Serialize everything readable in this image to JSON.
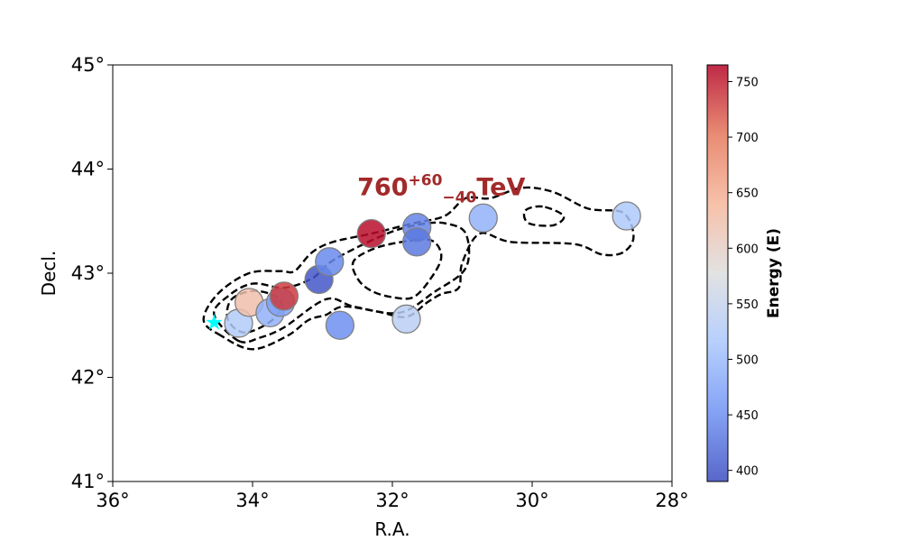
{
  "colors": {
    "annotation": "#a22a2a",
    "source_marker": "#00ffff",
    "contour": "#000000",
    "colormap_stops": [
      "#3b4cc0",
      "#6f92f3",
      "#aac7fd",
      "#dcdddd",
      "#f6b69b",
      "#e5775b",
      "#b40426"
    ]
  },
  "chart_data": {
    "type": "scatter",
    "title": "",
    "xlabel": "R.A.",
    "ylabel": "Decl.",
    "xlim": [
      36,
      28
    ],
    "ylim": [
      41,
      45
    ],
    "xticks": [
      36,
      34,
      32,
      30,
      28
    ],
    "yticks": [
      41,
      42,
      43,
      44,
      45
    ],
    "xtick_labels": [
      "36°",
      "34°",
      "32°",
      "30°",
      "28°"
    ],
    "ytick_labels": [
      "41°",
      "42°",
      "43°",
      "44°",
      "45°"
    ],
    "annotation": {
      "base": "760",
      "sup": "+60",
      "sub": "−40",
      "unit": "TeV",
      "ra": 31.3,
      "dec": 43.75
    },
    "source_marker": {
      "ra": 34.55,
      "dec": 42.53,
      "symbol": "★"
    },
    "points": [
      {
        "ra": 34.2,
        "dec": 42.52,
        "energy": 525
      },
      {
        "ra": 34.05,
        "dec": 42.72,
        "energy": 625
      },
      {
        "ra": 33.75,
        "dec": 42.62,
        "energy": 490
      },
      {
        "ra": 33.6,
        "dec": 42.72,
        "energy": 470
      },
      {
        "ra": 33.55,
        "dec": 42.78,
        "energy": 735
      },
      {
        "ra": 33.05,
        "dec": 42.94,
        "energy": 400
      },
      {
        "ra": 32.9,
        "dec": 43.11,
        "energy": 445
      },
      {
        "ra": 32.75,
        "dec": 42.5,
        "energy": 450
      },
      {
        "ra": 32.3,
        "dec": 43.38,
        "energy": 760
      },
      {
        "ra": 31.8,
        "dec": 42.56,
        "energy": 535
      },
      {
        "ra": 31.65,
        "dec": 43.44,
        "energy": 440
      },
      {
        "ra": 31.65,
        "dec": 43.3,
        "energy": 430
      },
      {
        "ra": 30.7,
        "dec": 43.53,
        "energy": 490
      },
      {
        "ra": 28.65,
        "dec": 43.55,
        "energy": 520
      }
    ],
    "colorbar": {
      "label": "Energy (E)",
      "range": [
        390,
        765
      ],
      "ticks": [
        400,
        450,
        500,
        550,
        600,
        650,
        700,
        750
      ],
      "tick_labels": [
        "400",
        "450",
        "500",
        "550",
        "600",
        "650",
        "700",
        "750"
      ]
    },
    "contours": [
      [
        [
          34.45,
          42.4
        ],
        [
          34.7,
          42.55
        ],
        [
          34.5,
          42.8
        ],
        [
          34.05,
          43.0
        ],
        [
          33.6,
          43.02
        ],
        [
          33.4,
          43.02
        ],
        [
          33.15,
          43.2
        ],
        [
          32.85,
          43.3
        ],
        [
          32.3,
          43.38
        ],
        [
          31.7,
          43.48
        ],
        [
          31.25,
          43.55
        ],
        [
          30.95,
          43.72
        ],
        [
          30.6,
          43.72
        ],
        [
          30.15,
          43.82
        ],
        [
          29.7,
          43.78
        ],
        [
          29.2,
          43.62
        ],
        [
          28.7,
          43.58
        ],
        [
          28.55,
          43.35
        ],
        [
          28.7,
          43.2
        ],
        [
          29.0,
          43.18
        ],
        [
          29.4,
          43.28
        ],
        [
          30.3,
          43.3
        ],
        [
          30.75,
          43.38
        ],
        [
          31.0,
          43.1
        ],
        [
          31.05,
          42.86
        ],
        [
          31.3,
          42.8
        ],
        [
          31.5,
          42.72
        ],
        [
          31.8,
          42.58
        ],
        [
          32.2,
          42.63
        ],
        [
          32.7,
          42.68
        ],
        [
          32.95,
          42.6
        ],
        [
          33.2,
          42.55
        ],
        [
          33.5,
          42.4
        ],
        [
          34.0,
          42.27
        ],
        [
          34.45,
          42.4
        ]
      ],
      [
        [
          34.2,
          42.35
        ],
        [
          34.55,
          42.6
        ],
        [
          34.35,
          42.78
        ],
        [
          34.0,
          42.9
        ],
        [
          33.55,
          42.86
        ],
        [
          33.15,
          42.95
        ],
        [
          32.9,
          43.1
        ],
        [
          32.5,
          43.25
        ],
        [
          32.0,
          43.4
        ],
        [
          31.6,
          43.47
        ],
        [
          31.25,
          43.48
        ],
        [
          30.95,
          43.38
        ],
        [
          30.95,
          43.05
        ],
        [
          31.4,
          42.82
        ],
        [
          31.9,
          42.62
        ],
        [
          32.55,
          42.68
        ],
        [
          32.95,
          42.75
        ],
        [
          33.55,
          42.48
        ],
        [
          33.9,
          42.38
        ],
        [
          34.2,
          42.35
        ]
      ],
      [
        [
          34.1,
          42.43
        ],
        [
          34.35,
          42.55
        ],
        [
          34.3,
          42.75
        ],
        [
          33.95,
          42.83
        ],
        [
          33.6,
          42.74
        ],
        [
          33.7,
          42.56
        ],
        [
          34.1,
          42.43
        ]
      ],
      [
        [
          31.65,
          43.32
        ],
        [
          32.2,
          43.25
        ],
        [
          32.55,
          43.12
        ],
        [
          32.5,
          42.95
        ],
        [
          32.3,
          42.83
        ],
        [
          32.0,
          42.77
        ],
        [
          31.7,
          42.77
        ],
        [
          31.45,
          42.95
        ],
        [
          31.3,
          43.15
        ],
        [
          31.4,
          43.3
        ],
        [
          31.65,
          43.32
        ]
      ],
      [
        [
          29.85,
          43.64
        ],
        [
          30.1,
          43.6
        ],
        [
          30.05,
          43.48
        ],
        [
          29.7,
          43.46
        ],
        [
          29.55,
          43.55
        ],
        [
          29.85,
          43.64
        ]
      ]
    ]
  }
}
